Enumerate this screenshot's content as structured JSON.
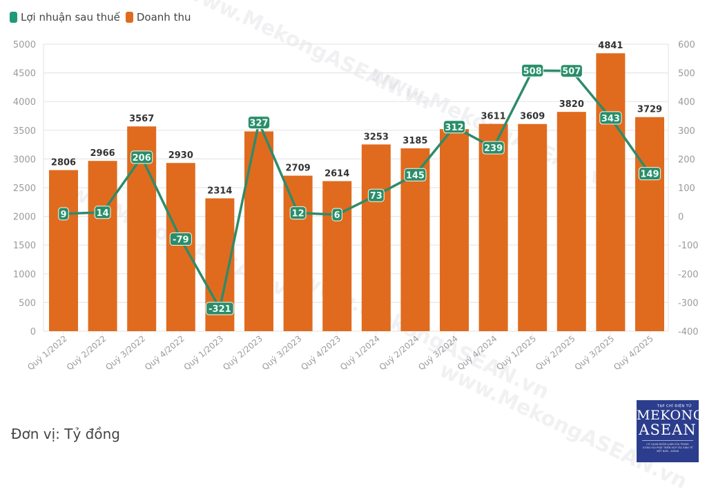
{
  "legend": {
    "items": [
      {
        "label": "Lợi nhuận sau thuế",
        "color": "#1f9a78"
      },
      {
        "label": "Doanh thu",
        "color": "#e06b1e"
      }
    ]
  },
  "unit_label": "Đơn vị: Tỷ đồng",
  "logo": {
    "subtitle": "TẠP CHÍ ĐIỆN TỬ",
    "line1": "MEKONG",
    "line2": "ASEAN",
    "tagline": "CƠ QUAN NGÔN LUẬN CỦA TRUNG ƯƠNG HỘI PHÁT TRIỂN HỢP TÁC KINH TẾ VIỆT NAM - ASEAN"
  },
  "watermark": "www.MekongASEAN.vn",
  "colors": {
    "bar": "#e06b1e",
    "line": "#2e8b6a",
    "label_bg": "#2e8b6a",
    "label_text": "#e9fff5",
    "grid": "#e6e6e6",
    "axis_text": "#9a9a9a",
    "bar_label": "#333333"
  },
  "chart_data": {
    "type": "bar",
    "title": "",
    "xlabel": "",
    "ylabel": "",
    "categories": [
      "Quý 1/2022",
      "Quý 2/2022",
      "Quý 3/2022",
      "Quý 4/2022",
      "Quý 1/2023",
      "Quý 2/2023",
      "Quý 3/2023",
      "Quý 4/2023",
      "Quý 1/2024",
      "Quý 2/2024",
      "Quý 3/2024",
      "Quý 4/2024",
      "Quý 1/2025",
      "Quý 2/2025",
      "Quý 3/2025",
      "Quý 4/2025"
    ],
    "series": [
      {
        "name": "Doanh thu",
        "type": "bar",
        "axis": "left",
        "values": [
          2806,
          2966,
          3567,
          2930,
          2314,
          3480,
          2709,
          2614,
          3253,
          3185,
          3520,
          3611,
          3609,
          3820,
          4841,
          3729
        ],
        "labels_shown": [
          true,
          true,
          true,
          true,
          true,
          false,
          true,
          true,
          true,
          true,
          false,
          true,
          true,
          true,
          true,
          true
        ]
      },
      {
        "name": "Lợi nhuận sau thuế",
        "type": "line",
        "axis": "right",
        "values": [
          9,
          14,
          206,
          -79,
          -321,
          327,
          12,
          6,
          73,
          145,
          312,
          239,
          508,
          507,
          343,
          149
        ]
      }
    ],
    "y_left": {
      "min": 0,
      "max": 5000,
      "ticks": [
        0,
        500,
        1000,
        1500,
        2000,
        2500,
        3000,
        3500,
        4000,
        4500,
        5000
      ]
    },
    "y_right": {
      "min": -400,
      "max": 600,
      "ticks": [
        -400,
        -300,
        -200,
        -100,
        0,
        100,
        200,
        300,
        400,
        500,
        600
      ]
    },
    "grid": true,
    "legend_position": "top-left"
  }
}
